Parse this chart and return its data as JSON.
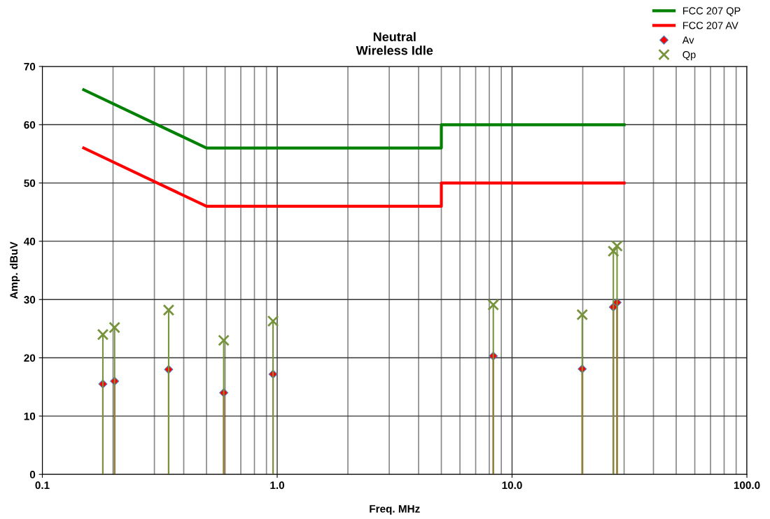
{
  "chart_data": {
    "type": "line",
    "title": "Neutral\nWireless Idle",
    "xlabel": "Freq. MHz",
    "ylabel": "Amp. dBuV",
    "log": "x",
    "xlim": [
      0.1,
      100
    ],
    "ylim": [
      0,
      70
    ],
    "xticks": [
      0.1,
      {
        "value": 1,
        "label": "1.0"
      },
      {
        "value": 10,
        "label": "10.0"
      },
      {
        "value": 100,
        "label": "100.0"
      }
    ],
    "yticks": [
      0,
      10,
      20,
      30,
      40,
      50,
      60,
      70
    ],
    "grid": true,
    "legend": "top right",
    "series": [
      {
        "name": "FCC 207 QP",
        "color": "#008000",
        "marker": "none",
        "line_style": "solid",
        "x": [
          0.15,
          0.5,
          5,
          5,
          30
        ],
        "values": [
          66,
          56,
          56,
          60,
          60
        ]
      },
      {
        "name": "FCC 207 AV",
        "color": "#ff0000",
        "marker": "none",
        "line_style": "solid",
        "x": [
          0.15,
          0.5,
          5,
          5,
          30
        ],
        "values": [
          56,
          46,
          46,
          50,
          50
        ]
      },
      {
        "name": "Av",
        "color": "#ff0000",
        "type": "lollipop",
        "marker": "diamond",
        "x": [
          0.181,
          0.203,
          0.345,
          0.592,
          0.96,
          8.32,
          19.9,
          27.0,
          28.0
        ],
        "values": [
          15.5,
          16,
          18,
          14,
          17.2,
          20.3,
          18.1,
          28.7,
          29.5
        ]
      },
      {
        "name": "Qp",
        "color": "#77933c",
        "type": "lollipop",
        "marker": "cross",
        "x": [
          0.181,
          0.203,
          0.345,
          0.592,
          0.96,
          8.32,
          19.9,
          27.0,
          28.0
        ],
        "values": [
          24,
          25.2,
          28.2,
          23,
          26.3,
          29.1,
          27.4,
          38.3,
          39.2
        ]
      }
    ]
  }
}
